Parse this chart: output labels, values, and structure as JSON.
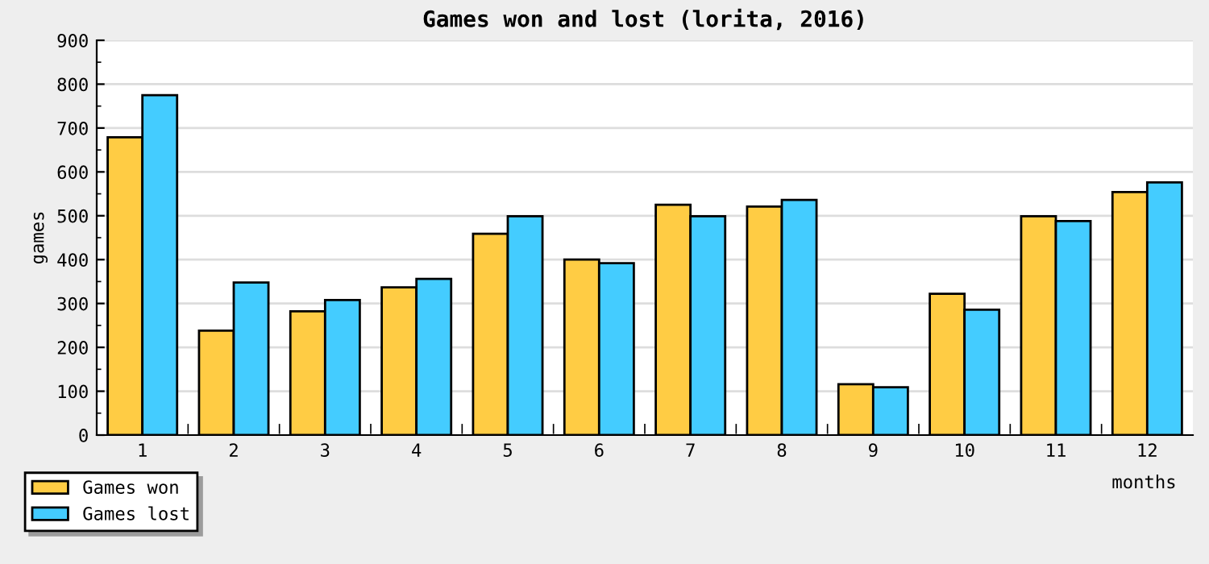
{
  "chart_data": {
    "type": "bar",
    "title": "Games won and lost (lorita, 2016)",
    "xlabel": "months",
    "ylabel": "games",
    "categories": [
      "1",
      "2",
      "3",
      "4",
      "5",
      "6",
      "7",
      "8",
      "9",
      "10",
      "11",
      "12"
    ],
    "series": [
      {
        "name": "Games won",
        "color": "#ffcc44",
        "values": [
          679,
          238,
          282,
          337,
          459,
          400,
          525,
          521,
          116,
          322,
          499,
          554
        ]
      },
      {
        "name": "Games lost",
        "color": "#44ccff",
        "values": [
          775,
          348,
          308,
          356,
          499,
          392,
          499,
          536,
          109,
          286,
          488,
          576
        ]
      }
    ],
    "ylim": [
      0,
      900
    ],
    "yticks": [
      0,
      100,
      200,
      300,
      400,
      500,
      600,
      700,
      800,
      900
    ],
    "grid": "y",
    "legend": "bottom left"
  }
}
